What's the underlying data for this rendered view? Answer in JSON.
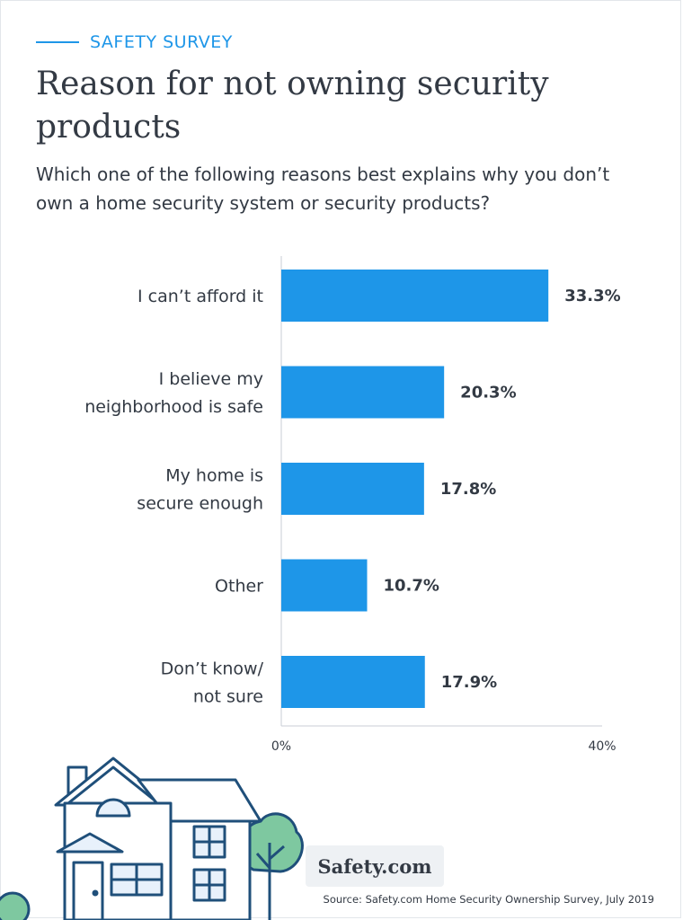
{
  "header": {
    "eyebrow": "SAFETY SURVEY",
    "title": "Reason for not owning security products",
    "subtitle": "Which one of the following reasons best explains why you don’t own a home security system or security products?"
  },
  "colors": {
    "accent": "#1e96e8",
    "bar": "#1e96e8",
    "text": "#333a44",
    "house_stroke": "#1f4f7a",
    "tree": "#7ec8a0"
  },
  "chart_data": {
    "type": "bar",
    "orientation": "horizontal",
    "categories": [
      [
        "I can’t afford it"
      ],
      [
        "I believe my",
        "neighborhood is safe"
      ],
      [
        "My home is",
        "secure enough"
      ],
      [
        "Other"
      ],
      [
        "Don’t know/",
        "not sure"
      ]
    ],
    "values": [
      33.3,
      20.3,
      17.8,
      10.7,
      17.9
    ],
    "value_labels": [
      "33.3%",
      "20.3%",
      "17.8%",
      "10.7%",
      "17.9%"
    ],
    "xlim": [
      0,
      40
    ],
    "ticks": [
      {
        "value": 0,
        "label": "0%"
      },
      {
        "value": 40,
        "label": "40%"
      }
    ],
    "grid": false
  },
  "footer": {
    "logo_text": "Safety.com",
    "source": "Source: Safety.com Home Security Ownership Survey, July 2019"
  },
  "illustration": {
    "icon": "house-icon",
    "tree_icon": "tree-icon"
  }
}
